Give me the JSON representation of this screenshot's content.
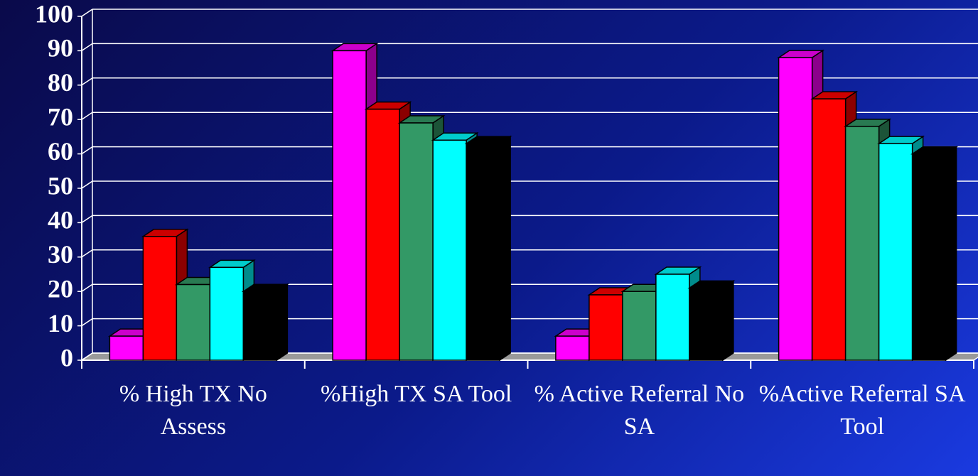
{
  "chart_data": {
    "type": "bar3d",
    "categories": [
      "% High TX No Assess",
      "%High TX SA Tool",
      "% Active Referral No SA",
      "%Active Referral SA Tool"
    ],
    "series": [
      {
        "color": "#ff00ff",
        "values": [
          7,
          90,
          7,
          88
        ]
      },
      {
        "color": "#ff0000",
        "values": [
          36,
          73,
          19,
          76
        ]
      },
      {
        "color": "#339966",
        "values": [
          22,
          69,
          20,
          68
        ]
      },
      {
        "color": "#00ffff",
        "values": [
          27,
          64,
          25,
          63
        ]
      },
      {
        "color": "#000000",
        "values": [
          20,
          63,
          21,
          60
        ]
      }
    ],
    "ylim": [
      0,
      100
    ],
    "yticks": [
      0,
      10,
      20,
      30,
      40,
      50,
      60,
      70,
      80,
      90,
      100
    ],
    "grid": true
  }
}
